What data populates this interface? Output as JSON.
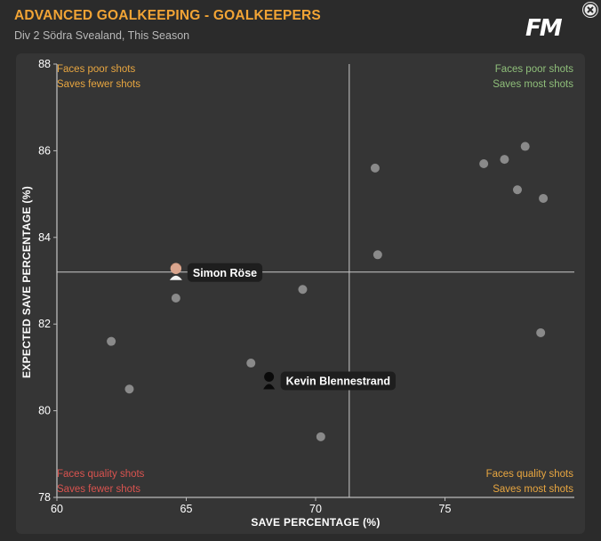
{
  "header": {
    "title": "ADVANCED GOALKEEPING - GOALKEEPERS",
    "subtitle": "Div 2 Södra Svealand, This Season",
    "logo": "FM"
  },
  "colors": {
    "accent": "#f2a435",
    "point": "#8a8a8a",
    "quadrant_good": "#8fbf7a",
    "quadrant_bad": "#d9534f",
    "quadrant_mixed": "#e8a640"
  },
  "quadrants": {
    "top_left": [
      "Faces poor shots",
      "Saves fewer shots"
    ],
    "top_right": [
      "Faces poor shots",
      "Saves most shots"
    ],
    "bottom_left": [
      "Faces quality shots",
      "Saves fewer shots"
    ],
    "bottom_right": [
      "Faces quality shots",
      "Saves most shots"
    ]
  },
  "chart_data": {
    "type": "scatter",
    "xlabel": "SAVE PERCENTAGE (%)",
    "ylabel": "EXPECTED SAVE PERCENTAGE (%)",
    "xlim": [
      60,
      80
    ],
    "ylim": [
      78,
      88
    ],
    "xticks": [
      60,
      65,
      70,
      75
    ],
    "yticks": [
      78,
      80,
      82,
      84,
      86,
      88
    ],
    "reference_lines": {
      "x": 71.3,
      "y": 83.2
    },
    "points": [
      {
        "x": 62.1,
        "y": 81.6
      },
      {
        "x": 62.8,
        "y": 80.5
      },
      {
        "x": 64.6,
        "y": 82.6
      },
      {
        "x": 67.5,
        "y": 81.1
      },
      {
        "x": 69.5,
        "y": 82.8
      },
      {
        "x": 70.2,
        "y": 79.4
      },
      {
        "x": 72.3,
        "y": 85.6
      },
      {
        "x": 72.4,
        "y": 83.6
      },
      {
        "x": 76.5,
        "y": 85.7
      },
      {
        "x": 77.3,
        "y": 85.8
      },
      {
        "x": 77.8,
        "y": 85.1
      },
      {
        "x": 78.1,
        "y": 86.1
      },
      {
        "x": 78.8,
        "y": 84.9
      },
      {
        "x": 78.7,
        "y": 81.8
      }
    ],
    "highlighted": [
      {
        "name": "Simon Röse",
        "x": 64.6,
        "y": 83.2,
        "icon": "player-photo-icon"
      },
      {
        "name": "Kevin Blennestrand",
        "x": 68.2,
        "y": 80.7,
        "icon": "player-silhouette-icon"
      }
    ]
  }
}
